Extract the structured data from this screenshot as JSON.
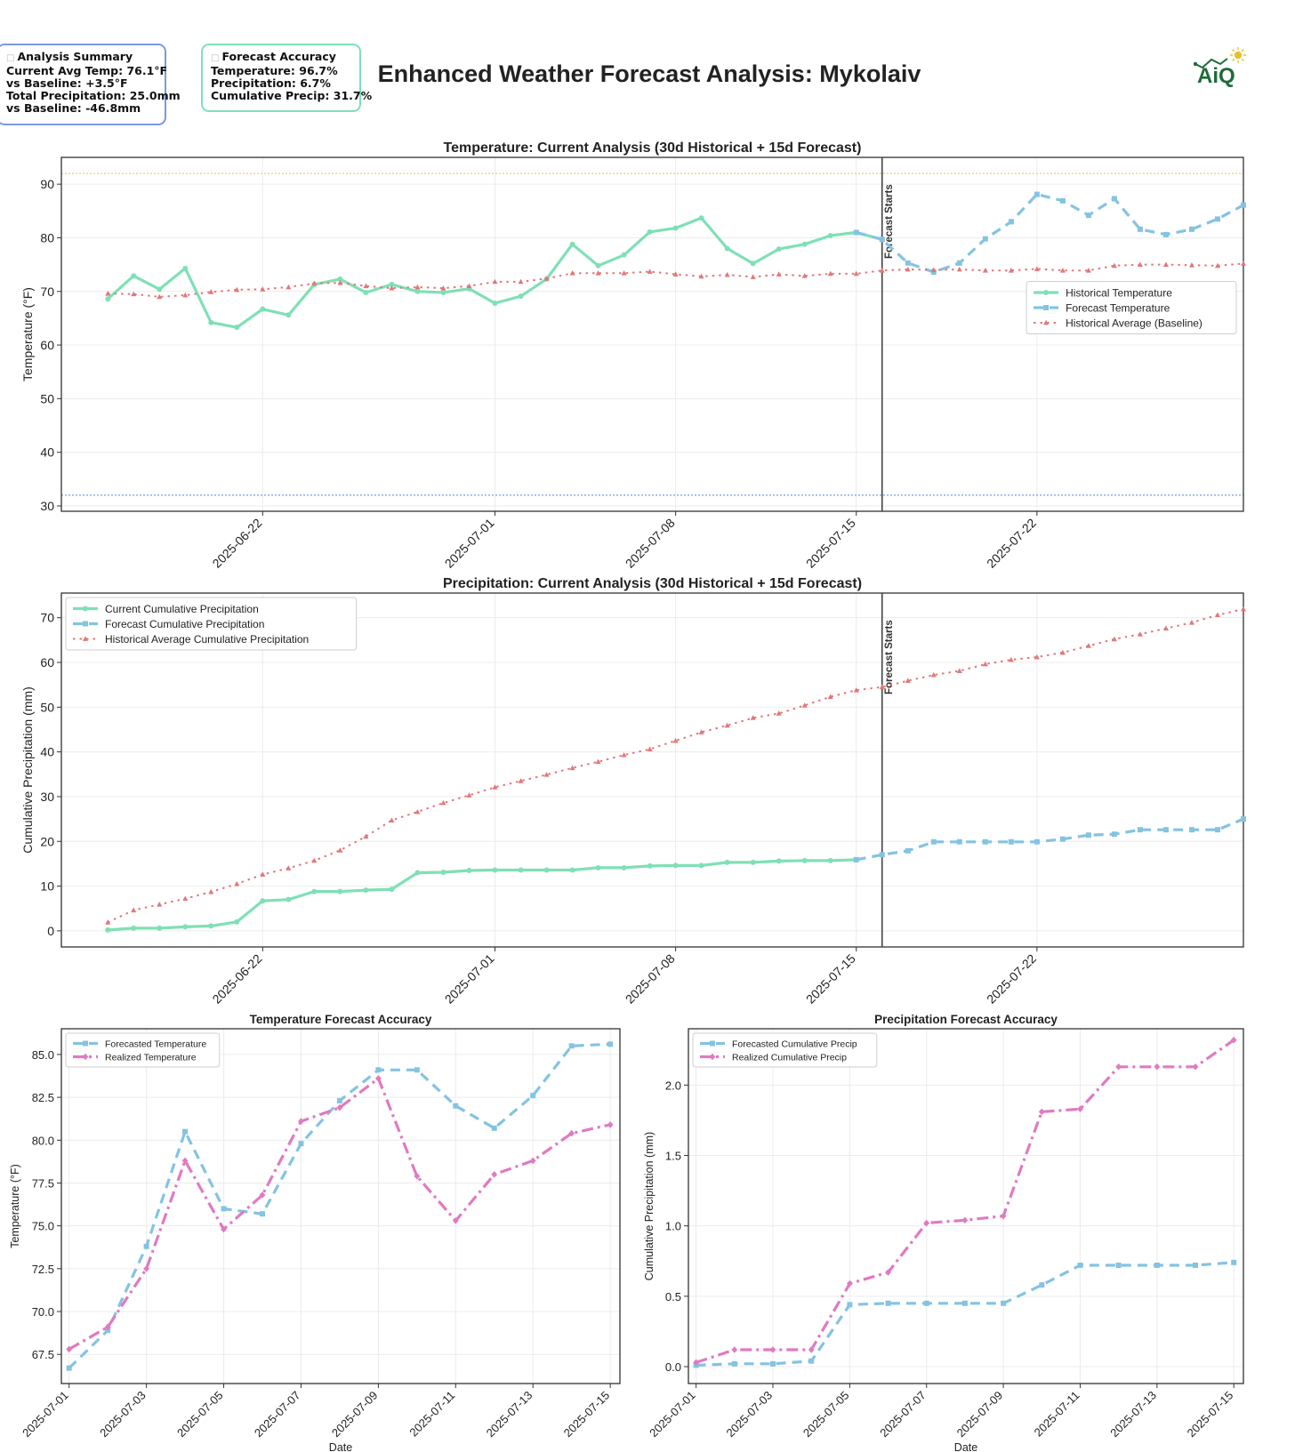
{
  "header": {
    "title": "Enhanced Weather Forecast Analysis: Mykolaiv",
    "logo_text": "AiQ"
  },
  "summary": {
    "heading": "Analysis Summary",
    "lines": [
      "Current Avg Temp: 76.1°F",
      "vs Baseline: +3.5°F",
      "Total Precipitation: 25.0mm",
      "vs Baseline: -46.8mm"
    ]
  },
  "accuracy": {
    "heading": "Forecast Accuracy",
    "lines": [
      "Temperature: 96.7%",
      "Precipitation: 6.7%",
      "Cumulative Precip: 31.7%"
    ]
  },
  "colors": {
    "historical": "#7fe0b5",
    "forecast": "#84c3e2",
    "baseline": "#e0787a",
    "realized": "#e07ac2",
    "freeze_line": "#7b98e0",
    "heat_line": "#e8c98a"
  },
  "chart_data": [
    {
      "id": "temp-main",
      "type": "line",
      "title": "Temperature: Current Analysis (30d Historical + 15d Forecast)",
      "xlabel": "",
      "ylabel": "Temperature (°F)",
      "ylim": [
        29,
        95
      ],
      "yticks": [
        30,
        40,
        50,
        60,
        70,
        80,
        90
      ],
      "xlim": [
        -1.8,
        44
      ],
      "xtick_labels": [
        {
          "x": 6,
          "label": "2025-06-22"
        },
        {
          "x": 15,
          "label": "2025-07-01"
        },
        {
          "x": 22,
          "label": "2025-07-08"
        },
        {
          "x": 29,
          "label": "2025-07-15"
        },
        {
          "x": 36,
          "label": "2025-07-22"
        }
      ],
      "vline": {
        "x": 30,
        "label": "Forecast Starts"
      },
      "hlines": [
        {
          "y": 32,
          "color_key": "freeze_line"
        },
        {
          "y": 92,
          "color_key": "heat_line"
        }
      ],
      "legend": {
        "position": "center-right",
        "entries": [
          "Historical Temperature",
          "Forecast Temperature",
          "Historical Average (Baseline)"
        ]
      },
      "series": [
        {
          "name": "Historical Temperature",
          "style": "historical",
          "x_start": 0,
          "values": [
            68.6,
            72.9,
            70.4,
            74.3,
            64.2,
            63.3,
            66.7,
            65.6,
            71.3,
            72.3,
            69.8,
            71.3,
            70.0,
            69.8,
            70.5,
            67.8,
            69.1,
            72.3,
            78.8,
            74.8,
            76.8,
            81.1,
            81.8,
            83.7,
            78.0,
            75.2,
            77.9,
            78.8,
            80.4,
            81.0,
            79.7
          ]
        },
        {
          "name": "Forecast Temperature",
          "style": "forecast",
          "x_start": 29,
          "values": [
            81.0,
            79.7,
            75.3,
            73.6,
            75.3,
            79.8,
            83.0,
            88.1,
            86.9,
            84.2,
            87.3,
            81.6,
            80.6,
            81.6,
            83.5,
            86.1
          ]
        },
        {
          "name": "Historical Average (Baseline)",
          "style": "baseline",
          "x_start": 0,
          "values": [
            69.6,
            69.5,
            69.0,
            69.3,
            69.9,
            70.3,
            70.4,
            70.8,
            71.5,
            71.6,
            71.0,
            70.6,
            70.8,
            70.6,
            71.0,
            71.8,
            71.8,
            72.4,
            73.4,
            73.4,
            73.4,
            73.7,
            73.2,
            72.8,
            73.1,
            72.7,
            73.2,
            72.9,
            73.3,
            73.3,
            73.9,
            74.1,
            74.0,
            74.1,
            73.9,
            73.9,
            74.2,
            73.9,
            73.9,
            74.8,
            75.0,
            75.0,
            74.9,
            74.8,
            75.2
          ]
        }
      ]
    },
    {
      "id": "precip-main",
      "type": "line",
      "title": "Precipitation: Current Analysis (30d Historical + 15d Forecast)",
      "xlabel": "",
      "ylabel": "Cumulative Precipitation (mm)",
      "ylim": [
        -3.6,
        75.5
      ],
      "yticks": [
        0,
        10,
        20,
        30,
        40,
        50,
        60,
        70
      ],
      "xlim": [
        -1.8,
        44
      ],
      "xtick_labels": [
        {
          "x": 6,
          "label": "2025-06-22"
        },
        {
          "x": 15,
          "label": "2025-07-01"
        },
        {
          "x": 22,
          "label": "2025-07-08"
        },
        {
          "x": 29,
          "label": "2025-07-15"
        },
        {
          "x": 36,
          "label": "2025-07-22"
        }
      ],
      "vline": {
        "x": 30,
        "label": "Forecast Starts"
      },
      "legend": {
        "position": "top-left",
        "entries": [
          "Current Cumulative Precipitation",
          "Forecast Cumulative Precipitation",
          "Historical Average Cumulative Precipitation"
        ]
      },
      "series": [
        {
          "name": "Current Cumulative Precipitation",
          "style": "historical",
          "x_start": 0,
          "values": [
            0.2,
            0.6,
            0.6,
            0.9,
            1.1,
            2.0,
            6.7,
            7.0,
            8.8,
            8.8,
            9.1,
            9.3,
            13.0,
            13.1,
            13.5,
            13.6,
            13.6,
            13.6,
            13.6,
            14.1,
            14.1,
            14.5,
            14.6,
            14.6,
            15.3,
            15.3,
            15.6,
            15.7,
            15.7,
            15.9
          ]
        },
        {
          "name": "Forecast Cumulative Precipitation",
          "style": "forecast",
          "x_start": 29,
          "values": [
            15.9,
            17.0,
            17.9,
            19.9,
            19.9,
            19.9,
            19.9,
            19.9,
            20.5,
            21.4,
            21.6,
            22.6,
            22.6,
            22.6,
            22.6,
            25.0
          ]
        },
        {
          "name": "Historical Average Cumulative Precipitation",
          "style": "baseline",
          "x_start": 0,
          "values": [
            1.9,
            4.6,
            5.9,
            7.2,
            8.7,
            10.5,
            12.6,
            14.0,
            15.7,
            18.0,
            21.1,
            24.7,
            26.6,
            28.6,
            30.3,
            32.1,
            33.5,
            34.9,
            36.4,
            37.8,
            39.3,
            40.6,
            42.5,
            44.4,
            45.9,
            47.6,
            48.6,
            50.4,
            52.3,
            53.8,
            54.5,
            55.9,
            57.2,
            58.1,
            59.6,
            60.6,
            61.2,
            62.2,
            63.7,
            65.2,
            66.3,
            67.6,
            68.9,
            70.6,
            71.9
          ]
        }
      ]
    },
    {
      "id": "temp-accuracy",
      "type": "line",
      "title": "Temperature Forecast Accuracy",
      "xlabel": "Date",
      "ylabel": "Temperature (°F)",
      "ylim": [
        65.8,
        86.5
      ],
      "yticks": [
        67.5,
        70.0,
        72.5,
        75.0,
        77.5,
        80.0,
        82.5,
        85.0
      ],
      "ytick_decimals": 1,
      "xlim": [
        -0.2,
        14.25
      ],
      "xtick_labels": [
        {
          "x": 0,
          "label": "2025-07-01"
        },
        {
          "x": 2,
          "label": "2025-07-03"
        },
        {
          "x": 4,
          "label": "2025-07-05"
        },
        {
          "x": 6,
          "label": "2025-07-07"
        },
        {
          "x": 8,
          "label": "2025-07-09"
        },
        {
          "x": 10,
          "label": "2025-07-11"
        },
        {
          "x": 12,
          "label": "2025-07-13"
        },
        {
          "x": 14,
          "label": "2025-07-15"
        }
      ],
      "legend": {
        "position": "top-left",
        "entries": [
          "Forecasted Temperature",
          "Realized Temperature"
        ]
      },
      "series": [
        {
          "name": "Forecasted Temperature",
          "style": "forecast",
          "x_start": 0,
          "values": [
            66.7,
            68.9,
            73.8,
            80.5,
            76.0,
            75.7,
            79.8,
            82.3,
            84.1,
            84.1,
            82.0,
            80.7,
            82.6,
            85.5,
            85.6
          ]
        },
        {
          "name": "Realized Temperature",
          "style": "realized",
          "x_start": 0,
          "values": [
            67.8,
            69.1,
            72.5,
            78.8,
            74.8,
            76.8,
            81.1,
            81.9,
            83.6,
            77.9,
            75.3,
            78.0,
            78.8,
            80.4,
            80.9
          ]
        }
      ]
    },
    {
      "id": "precip-accuracy",
      "type": "line",
      "title": "Precipitation Forecast Accuracy",
      "xlabel": "Date",
      "ylabel": "Cumulative Precipitation (mm)",
      "ylim": [
        -0.12,
        2.4
      ],
      "yticks": [
        0.0,
        0.5,
        1.0,
        1.5,
        2.0
      ],
      "ytick_decimals": 1,
      "xlim": [
        -0.2,
        14.25
      ],
      "xtick_labels": [
        {
          "x": 0,
          "label": "2025-07-01"
        },
        {
          "x": 2,
          "label": "2025-07-03"
        },
        {
          "x": 4,
          "label": "2025-07-05"
        },
        {
          "x": 6,
          "label": "2025-07-07"
        },
        {
          "x": 8,
          "label": "2025-07-09"
        },
        {
          "x": 10,
          "label": "2025-07-11"
        },
        {
          "x": 12,
          "label": "2025-07-13"
        },
        {
          "x": 14,
          "label": "2025-07-15"
        }
      ],
      "legend": {
        "position": "top-left",
        "entries": [
          "Forecasted Cumulative Precip",
          "Realized Cumulative Precip"
        ]
      },
      "series": [
        {
          "name": "Forecasted Cumulative Precip",
          "style": "forecast",
          "x_start": 0,
          "values": [
            0.01,
            0.02,
            0.02,
            0.04,
            0.44,
            0.45,
            0.45,
            0.45,
            0.45,
            0.58,
            0.72,
            0.72,
            0.72,
            0.72,
            0.74
          ]
        },
        {
          "name": "Realized Cumulative Precip",
          "style": "realized",
          "x_start": 0,
          "values": [
            0.03,
            0.12,
            0.12,
            0.12,
            0.59,
            0.67,
            1.02,
            1.04,
            1.07,
            1.81,
            1.83,
            2.13,
            2.13,
            2.13,
            2.32
          ]
        }
      ]
    }
  ]
}
